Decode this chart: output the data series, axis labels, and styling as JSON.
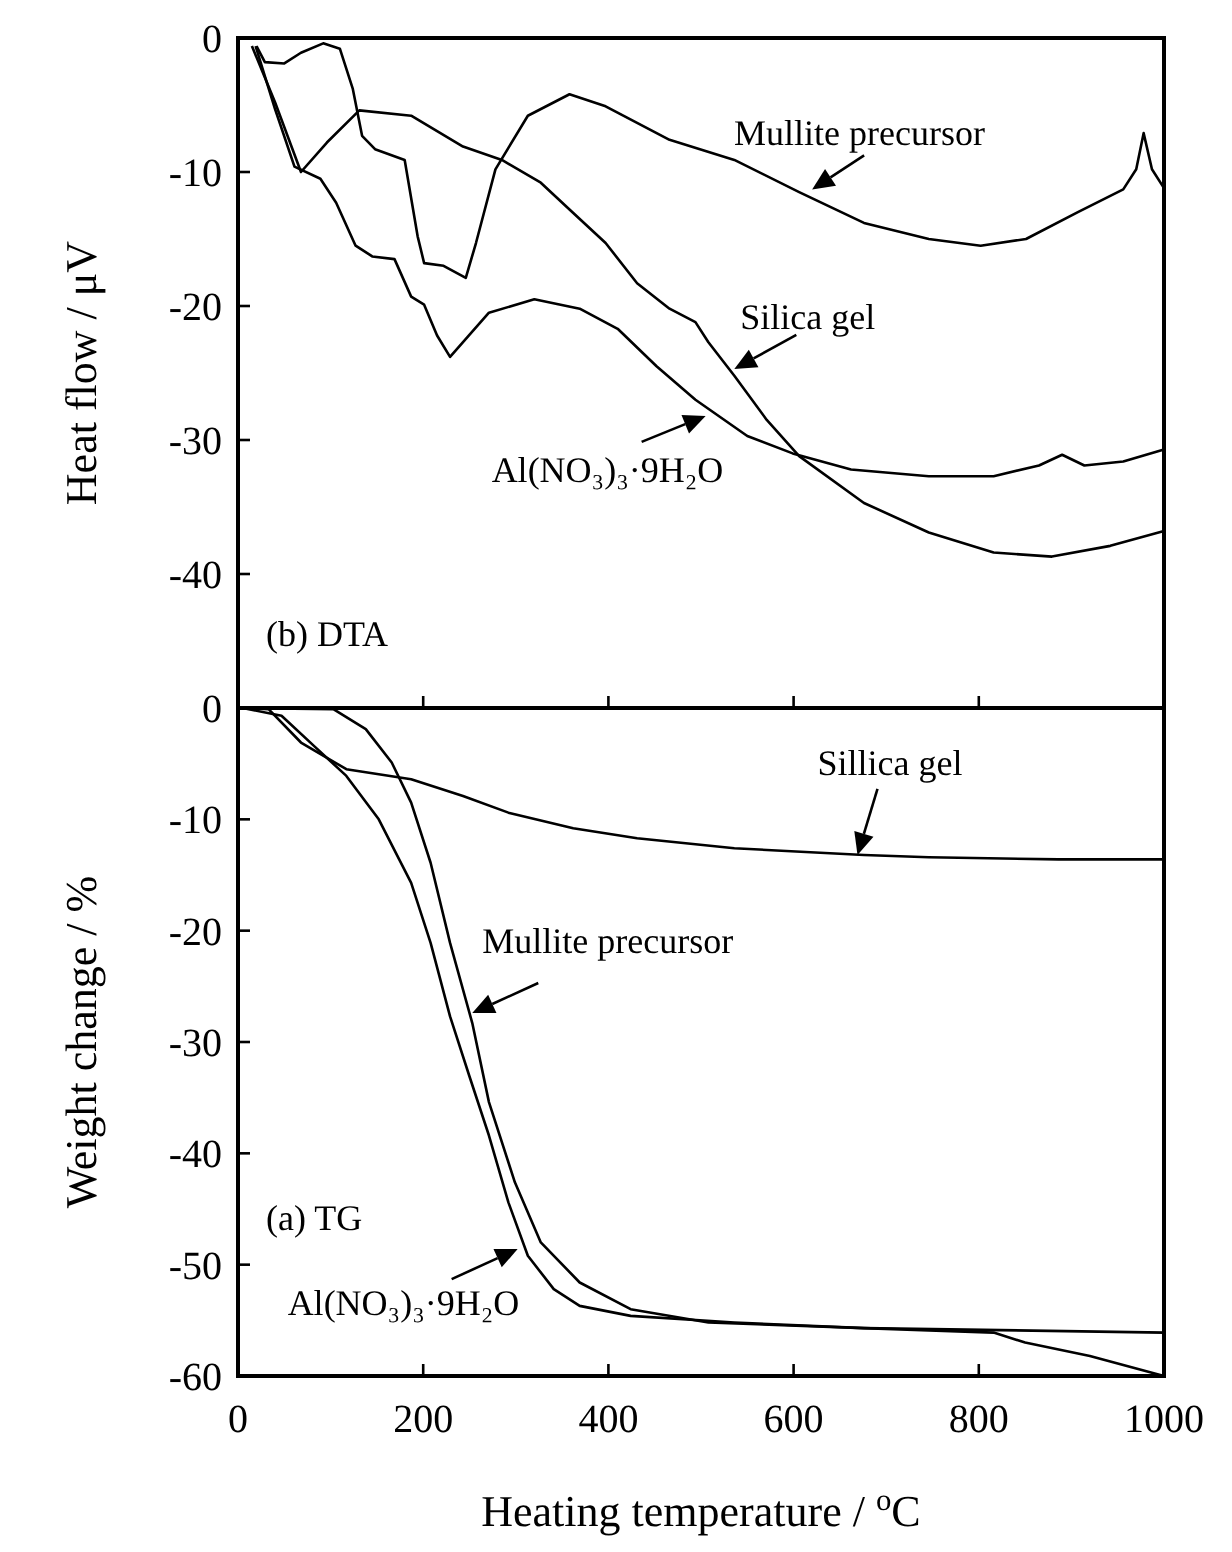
{
  "chart_data": [
    {
      "type": "line",
      "ylabel": "Heat flow /  μV",
      "xlim": [
        0,
        1000
      ],
      "xticks": [
        0,
        200,
        400,
        600,
        800,
        1000
      ],
      "ylim": [
        -50,
        0
      ],
      "yticks": [
        0,
        -10,
        -20,
        -30,
        -40
      ],
      "tick_labels": "y",
      "series": [
        {
          "color": "#000000",
          "x": [
            20,
            29,
            50,
            68,
            92,
            110,
            124,
            134,
            148,
            180,
            194,
            201,
            222,
            246,
            257,
            278,
            313,
            358,
            397,
            466,
            536,
            606,
            676,
            746,
            802,
            851,
            907,
            956,
            970,
            978,
            987,
            1000
          ],
          "values": [
            -0.6,
            -1.8,
            -1.9,
            -1.1,
            -0.4,
            -0.8,
            -3.8,
            -7.3,
            -8.3,
            -9.1,
            -14.8,
            -16.8,
            -17.0,
            -17.9,
            -15.3,
            -9.8,
            -5.8,
            -4.2,
            -5.1,
            -7.6,
            -9.1,
            -11.5,
            -13.8,
            -15.0,
            -15.5,
            -15.0,
            -13.0,
            -11.3,
            -9.8,
            -7.1,
            -9.8,
            -11.2
          ]
        },
        {
          "color": "#000000",
          "x": [
            15,
            40,
            68,
            96,
            131,
            187,
            243,
            285,
            327,
            358,
            397,
            431,
            466,
            494,
            508,
            536,
            571,
            606,
            676,
            746,
            816,
            879,
            942,
            1000
          ],
          "values": [
            -0.6,
            -4.8,
            -10.0,
            -7.8,
            -5.4,
            -5.8,
            -8.1,
            -9.1,
            -10.8,
            -12.8,
            -15.3,
            -18.3,
            -20.2,
            -21.2,
            -22.7,
            -25.2,
            -28.5,
            -31.2,
            -34.7,
            -36.9,
            -38.4,
            -38.7,
            -37.9,
            -36.8
          ]
        },
        {
          "color": "#000000",
          "x": [
            19,
            40,
            61,
            89,
            106,
            127,
            145,
            169,
            187,
            201,
            215,
            229,
            243,
            271,
            320,
            369,
            410,
            452,
            494,
            550,
            599,
            662,
            746,
            816,
            865,
            890,
            914,
            956,
            1000
          ],
          "values": [
            -0.6,
            -5.3,
            -9.6,
            -10.5,
            -12.3,
            -15.5,
            -16.3,
            -16.5,
            -19.3,
            -19.9,
            -22.2,
            -23.8,
            -22.7,
            -20.5,
            -19.5,
            -20.2,
            -21.7,
            -24.5,
            -27.0,
            -29.7,
            -31.0,
            -32.2,
            -32.7,
            -32.7,
            -31.9,
            -31.1,
            -31.9,
            -31.6,
            -30.7
          ]
        }
      ],
      "annotations": [
        {
          "text": "Mullite precursor",
          "x": 620,
          "y": -11.3
        },
        {
          "text": "Silica gel",
          "x": 536,
          "y": -24.7
        },
        {
          "text": "Al(NO₃)₃·9H₂O",
          "x": 505,
          "y": -28.2
        },
        "(b) DTA"
      ]
    },
    {
      "type": "line",
      "xlabel": "Heating temperature / $^{o}$C",
      "ylabel": "Weight change / %",
      "xlim": [
        0,
        1000
      ],
      "xticks": [
        0,
        200,
        400,
        600,
        800,
        1000
      ],
      "ylim": [
        -60,
        0
      ],
      "yticks": [
        0,
        -10,
        -20,
        -30,
        -40,
        -50,
        -60
      ],
      "series": [
        {
          "color": "#000000",
          "x": [
            5,
            33,
            68,
            117,
            187,
            243,
            292,
            362,
            431,
            536,
            676,
            746,
            886,
            1000
          ],
          "values": [
            0,
            -0.1,
            -3.1,
            -5.5,
            -6.4,
            -7.9,
            -9.4,
            -10.8,
            -11.7,
            -12.6,
            -13.2,
            -13.4,
            -13.6,
            -13.6
          ]
        },
        {
          "color": "#000000",
          "x": [
            5,
            103,
            138,
            166,
            187,
            208,
            229,
            253,
            271,
            299,
            327,
            369,
            424,
            508,
            676,
            1000
          ],
          "values": [
            0,
            -0.1,
            -1.9,
            -4.9,
            -8.5,
            -13.9,
            -21.1,
            -28.3,
            -35.4,
            -42.6,
            -48.0,
            -51.6,
            -54.0,
            -55.2,
            -55.7,
            -56.1
          ]
        },
        {
          "color": "#000000",
          "x": [
            5,
            47,
            82,
            117,
            152,
            187,
            208,
            229,
            250,
            271,
            292,
            313,
            341,
            369,
            424,
            536,
            676,
            816,
            850,
            920,
            1000
          ],
          "values": [
            0,
            -0.7,
            -3.4,
            -6.1,
            -10.0,
            -15.7,
            -21.1,
            -27.7,
            -33.1,
            -38.4,
            -44.4,
            -49.2,
            -52.2,
            -53.7,
            -54.6,
            -55.2,
            -55.7,
            -56.1,
            -57.0,
            -58.2,
            -60
          ]
        }
      ],
      "annotations": [
        {
          "text": "Sillica gel",
          "x": 669,
          "y": -13.2
        },
        {
          "text": "Mullite precursor",
          "x": 253,
          "y": -27.4
        },
        {
          "text": "Al(NO₃)₃·9H₂O",
          "x": 302,
          "y": -48.6
        },
        "(a) TG"
      ]
    }
  ]
}
